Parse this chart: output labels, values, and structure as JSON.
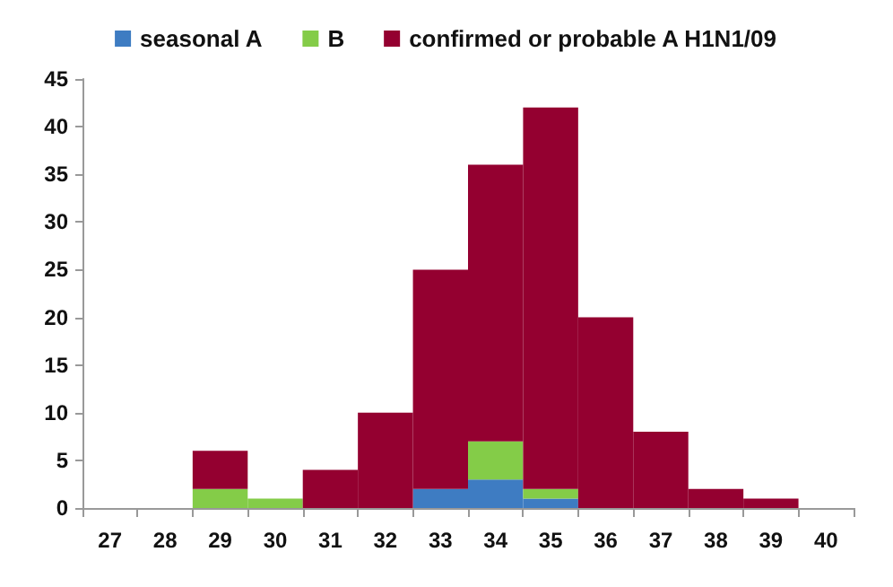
{
  "chart_data": {
    "type": "bar",
    "stacked": true,
    "categories": [
      "27",
      "28",
      "29",
      "30",
      "31",
      "32",
      "33",
      "34",
      "35",
      "36",
      "37",
      "38",
      "39",
      "40"
    ],
    "series": [
      {
        "name": "seasonal A",
        "color": "#3e7cc2",
        "values": [
          0,
          0,
          0,
          0,
          0,
          0,
          2,
          3,
          1,
          0,
          0,
          0,
          0,
          0
        ]
      },
      {
        "name": "B",
        "color": "#84cc48",
        "values": [
          0,
          0,
          2,
          1,
          0,
          0,
          0,
          4,
          1,
          0,
          0,
          0,
          0,
          0
        ]
      },
      {
        "name": "confirmed or probable A H1N1/09",
        "color": "#940030",
        "values": [
          0,
          0,
          4,
          0,
          4,
          10,
          23,
          29,
          40,
          20,
          8,
          2,
          1,
          0
        ]
      }
    ],
    "ylim": [
      0,
      45
    ],
    "yticks": [
      0,
      5,
      10,
      15,
      20,
      25,
      30,
      35,
      40,
      45
    ],
    "grid": false,
    "legend": "top"
  }
}
